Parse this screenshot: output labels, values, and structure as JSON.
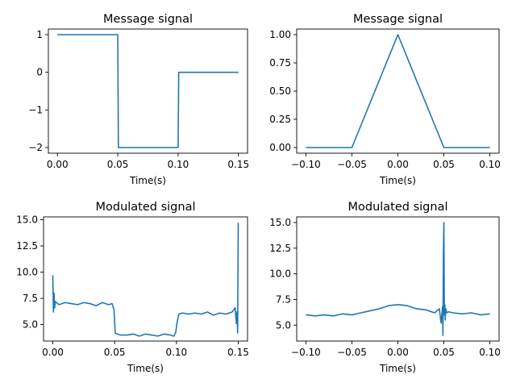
{
  "chart_data": [
    {
      "type": "line",
      "title": "Message signal",
      "xlabel": "Time(s)",
      "ylabel": "",
      "xlim": [
        -0.0075,
        0.1575
      ],
      "ylim": [
        -2.15,
        1.15
      ],
      "xticks": [
        0.0,
        0.05,
        0.1,
        0.15
      ],
      "xtick_labels": [
        "0.00",
        "0.05",
        "0.10",
        "0.15"
      ],
      "yticks": [
        1,
        0,
        -1,
        -2
      ],
      "ytick_labels": [
        "1",
        "0",
        "−1",
        "−2"
      ],
      "series": [
        {
          "x": [
            0.0,
            0.05,
            0.0505,
            0.1,
            0.1005,
            0.15
          ],
          "y": [
            1,
            1,
            -2,
            -2,
            0,
            0
          ]
        }
      ],
      "color": "#1f77b4",
      "grid": false
    },
    {
      "type": "line",
      "title": "Message signal",
      "xlabel": "Time(s)",
      "ylabel": "",
      "xlim": [
        -0.11,
        0.11
      ],
      "ylim": [
        -0.05,
        1.05
      ],
      "xticks": [
        -0.1,
        -0.05,
        0.0,
        0.05,
        0.1
      ],
      "xtick_labels": [
        "−0.10",
        "−0.05",
        "0.00",
        "0.05",
        "0.10"
      ],
      "yticks": [
        1.0,
        0.75,
        0.5,
        0.25,
        0.0
      ],
      "ytick_labels": [
        "1.00",
        "0.75",
        "0.50",
        "0.25",
        "0.00"
      ],
      "series": [
        {
          "x": [
            -0.1,
            -0.05,
            0.0,
            0.05,
            0.1
          ],
          "y": [
            0,
            0,
            1,
            0,
            0
          ]
        }
      ],
      "color": "#1f77b4",
      "grid": false
    },
    {
      "type": "line",
      "title": "Modulated signal",
      "xlabel": "Time(s)",
      "ylabel": "",
      "xlim": [
        -0.0075,
        0.1575
      ],
      "ylim": [
        3.43,
        15.27
      ],
      "xticks": [
        0.0,
        0.05,
        0.1,
        0.15
      ],
      "xtick_labels": [
        "0.00",
        "0.05",
        "0.10",
        "0.15"
      ],
      "yticks": [
        15.0,
        12.5,
        10.0,
        7.5,
        5.0
      ],
      "ytick_labels": [
        "15.0",
        "12.5",
        "10.0",
        "7.5",
        "5.0"
      ],
      "series": [
        {
          "x": [
            0.0,
            0.0005,
            0.001,
            0.0015,
            0.002,
            0.005,
            0.01,
            0.015,
            0.02,
            0.025,
            0.03,
            0.035,
            0.04,
            0.045,
            0.048,
            0.0495,
            0.0505,
            0.052,
            0.055,
            0.06,
            0.065,
            0.07,
            0.075,
            0.08,
            0.085,
            0.09,
            0.095,
            0.098,
            0.0995,
            0.1005,
            0.102,
            0.105,
            0.11,
            0.115,
            0.12,
            0.125,
            0.13,
            0.135,
            0.14,
            0.145,
            0.1475,
            0.1485,
            0.149,
            0.1495,
            0.15
          ],
          "y": [
            9.7,
            6.2,
            8.0,
            6.6,
            7.2,
            6.9,
            7.1,
            7.0,
            6.9,
            7.1,
            7.0,
            6.8,
            7.1,
            6.9,
            7.0,
            6.4,
            4.2,
            4.1,
            4.0,
            4.0,
            4.1,
            3.9,
            4.1,
            4.0,
            3.9,
            4.1,
            4.0,
            3.9,
            4.3,
            5.2,
            6.0,
            6.1,
            6.0,
            6.1,
            6.0,
            6.2,
            5.9,
            6.1,
            6.0,
            6.2,
            6.6,
            5.1,
            6.2,
            4.2,
            14.7
          ]
        }
      ],
      "color": "#1f77b4",
      "grid": false
    },
    {
      "type": "line",
      "title": "Modulated signal",
      "xlabel": "Time(s)",
      "ylabel": "",
      "xlim": [
        -0.11,
        0.11
      ],
      "ylim": [
        3.45,
        15.55
      ],
      "xticks": [
        -0.1,
        -0.05,
        0.0,
        0.05,
        0.1
      ],
      "xtick_labels": [
        "−0.10",
        "−0.05",
        "0.00",
        "0.05",
        "0.10"
      ],
      "yticks": [
        15.0,
        12.5,
        10.0,
        7.5,
        5.0
      ],
      "ytick_labels": [
        "15.0",
        "12.5",
        "10.0",
        "7.5",
        "5.0"
      ],
      "series": [
        {
          "x": [
            -0.1,
            -0.09,
            -0.08,
            -0.07,
            -0.06,
            -0.05,
            -0.04,
            -0.03,
            -0.02,
            -0.01,
            0.0,
            0.01,
            0.02,
            0.03,
            0.04,
            0.045,
            0.047,
            0.0485,
            0.049,
            0.0495,
            0.05,
            0.0505,
            0.051,
            0.0515,
            0.052,
            0.053,
            0.055,
            0.06,
            0.07,
            0.08,
            0.09,
            0.1
          ],
          "y": [
            6.0,
            5.9,
            6.0,
            5.9,
            6.1,
            6.0,
            6.2,
            6.4,
            6.6,
            6.9,
            7.0,
            6.9,
            6.6,
            6.5,
            6.2,
            6.6,
            5.2,
            6.8,
            4.0,
            12.0,
            15.0,
            6.0,
            7.0,
            5.5,
            6.6,
            6.2,
            6.3,
            6.2,
            6.1,
            6.2,
            6.0,
            6.1
          ]
        }
      ],
      "color": "#1f77b4",
      "grid": false
    }
  ]
}
